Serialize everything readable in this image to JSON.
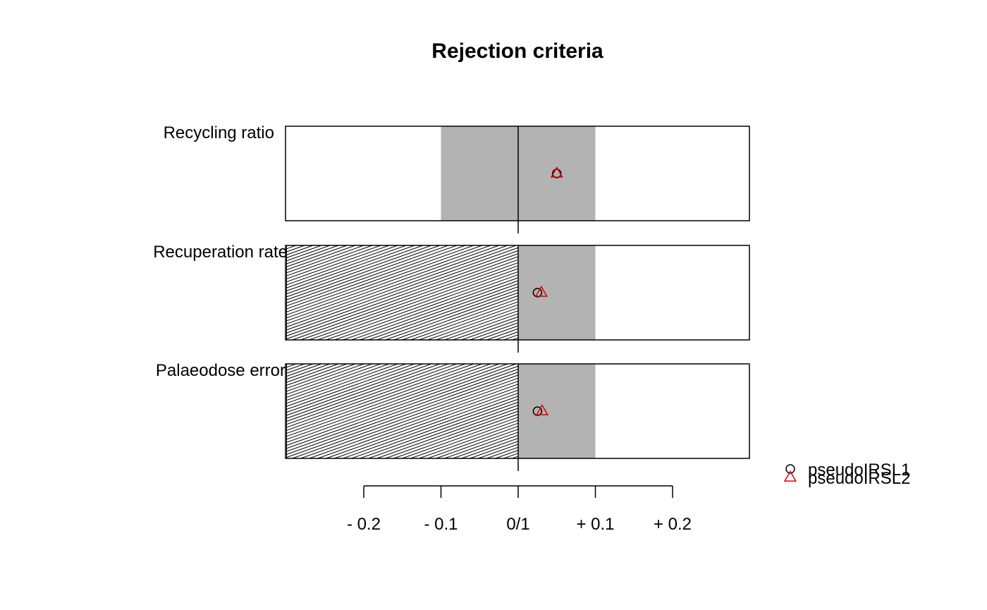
{
  "chart_data": {
    "type": "scatter",
    "title": "Rejection criteria",
    "xlabel": "",
    "ylabel": "",
    "xlim": [
      -0.3,
      0.3
    ],
    "x_ticks": [
      {
        "value": -0.2,
        "label": "- 0.2"
      },
      {
        "value": -0.1,
        "label": "- 0.1"
      },
      {
        "value": 0,
        "label": "0/1"
      },
      {
        "value": 0.1,
        "label": "+ 0.1"
      },
      {
        "value": 0.2,
        "label": "+ 0.2"
      }
    ],
    "criteria": [
      {
        "name": "Recycling ratio",
        "accept_range": [
          -0.1,
          0.1
        ],
        "hatched_range": null
      },
      {
        "name": "Recuperation rate",
        "accept_range": [
          0,
          0.1
        ],
        "hatched_range": [
          -0.3,
          0
        ]
      },
      {
        "name": "Palaeodose error",
        "accept_range": [
          0,
          0.1
        ],
        "hatched_range": [
          -0.3,
          0
        ]
      }
    ],
    "series": [
      {
        "name": "pseudoIRSL1",
        "marker": "circle",
        "color": "#000000",
        "values": [
          0.05,
          0.025,
          0.025
        ]
      },
      {
        "name": "pseudoIRSL2",
        "marker": "triangle",
        "color": "#e00000",
        "values": [
          0.05,
          0.03,
          0.031
        ]
      }
    ],
    "legend_position": "bottom-right",
    "grid": false,
    "colors": {
      "accept_band": "#b3b3b3",
      "frame": "#000000"
    }
  }
}
